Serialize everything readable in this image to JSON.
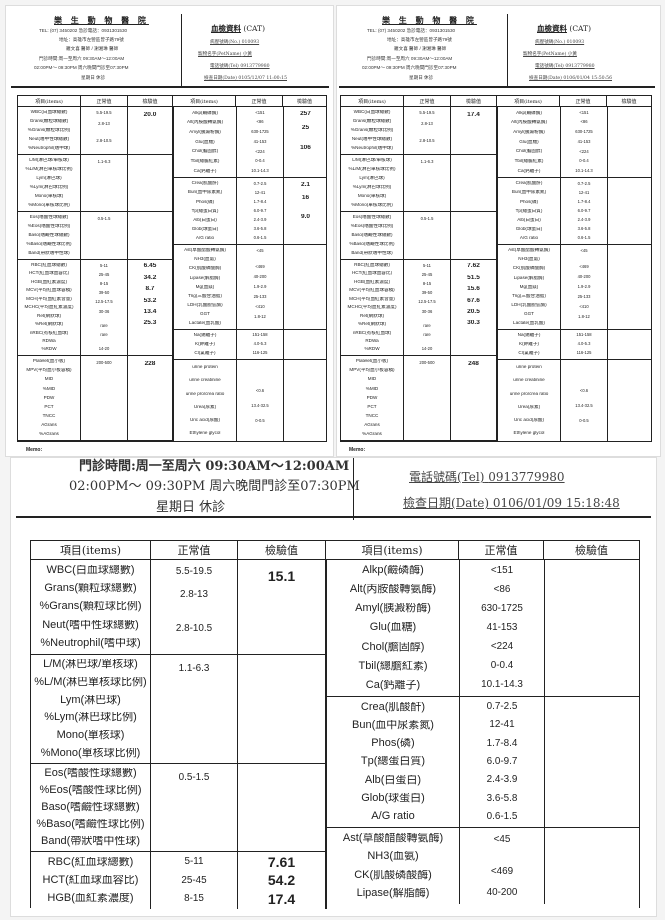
{
  "clinic": {
    "name": "樂 生 動 物 醫 院",
    "tel": "TEL: (07) 3450202  急診電話：0931301530",
    "address": "地址：高雄市左營區曾子路79號",
    "doctors": "羅文喜 醫師 / 謝湘琳 醫師",
    "hours_morning": "門診時間:周一至周六 09:30AM～12:00AM",
    "hours_evening": "02:00PM～ 09:30PM 周六晚間門診至07:30PM",
    "closed": "星期日 休診"
  },
  "form": {
    "title": "血檢資料",
    "species": "(CAT)",
    "no_label": "病歷號碼(No.)",
    "pet_label": "寵物名字(PetName)",
    "tel_label": "電話號碼(Tel)",
    "date_label": "檢查日期(Date)",
    "memo_label": "Memo:",
    "col_items": "項目(items)",
    "col_normal": "正常值",
    "col_result": "檢驗值"
  },
  "left_groups": [
    [
      [
        "WBC(白血球總數)",
        "5.5-19.5"
      ],
      [
        "Grans(顆粒球總數)",
        "2.8-13"
      ],
      [
        "%Grans(顆粒球比例)",
        ""
      ],
      [
        "Neut(嗜中性球總數)",
        "2.8-10.5"
      ],
      [
        "%Neutrophil(嗜中球)",
        ""
      ]
    ],
    [
      [
        "L/M(淋巴球/單核球)",
        "1.1-6.3"
      ],
      [
        "%L/M(淋巴單核球比例)",
        ""
      ],
      [
        "Lym(淋巴球)",
        ""
      ],
      [
        "%Lym(淋巴球比例)",
        ""
      ],
      [
        "Mono(單核球)",
        ""
      ],
      [
        "%Mono(單核球比例)",
        ""
      ]
    ],
    [
      [
        "Eos(嗜酸性球總數)",
        "0.5-1.5"
      ],
      [
        "%Eos(嗜酸性球比例)",
        ""
      ],
      [
        "Baso(嗜鹼性球總數)",
        ""
      ],
      [
        "%Baso(嗜鹼性球比例)",
        ""
      ],
      [
        "Band(帶狀嗜中性球)",
        ""
      ]
    ],
    [
      [
        "RBC(紅血球總數)",
        "5-11"
      ],
      [
        "HCT(紅血球血容比)",
        "25-45"
      ],
      [
        "HGB(血紅素濃度)",
        "8-15"
      ],
      [
        "MCV(平均紅血球容積)",
        "39-50"
      ],
      [
        "MCH(平均血紅素含量)",
        "12.5-17.5"
      ],
      [
        "MCHC(平均血紅素濃度)",
        "30-36"
      ],
      [
        "Ret(網狀球)",
        ""
      ],
      [
        "%Ret(網狀球)",
        "rare"
      ],
      [
        "nRBC(有核紅血球)",
        "rare"
      ],
      [
        "RDWa",
        ""
      ],
      [
        "%RDW",
        "14-20"
      ]
    ],
    [
      [
        "Platelet(血小板)",
        "200-500"
      ],
      [
        "MPV(平均血小板容積)",
        ""
      ],
      [
        "MID",
        ""
      ],
      [
        "%MID",
        ""
      ],
      [
        "PDW",
        ""
      ],
      [
        "PCT",
        ""
      ],
      [
        "TNCC",
        ""
      ],
      [
        "AGrans",
        ""
      ],
      [
        "%AGrans",
        ""
      ]
    ]
  ],
  "right_groups": [
    [
      [
        "Alkp(鹼磷酶)",
        "<151"
      ],
      [
        "Alt(丙胺酸轉氨酶)",
        "<86"
      ],
      [
        "Amyl(胰澱粉酶)",
        "630-1725"
      ],
      [
        "Glu(血糖)",
        "41-153"
      ],
      [
        "Chol(膽固醇)",
        "<224"
      ],
      [
        "Tbil(總膽紅素)",
        "0-0.4"
      ],
      [
        "Ca(鈣離子)",
        "10.1-14.3"
      ]
    ],
    [
      [
        "Crea(肌酸酐)",
        "0.7-2.5"
      ],
      [
        "Bun(血中尿素氮)",
        "12-41"
      ],
      [
        "Phos(磷)",
        "1.7-8.4"
      ],
      [
        "Tp(總蛋白質)",
        "6.0-9.7"
      ],
      [
        "Alb(白蛋白)",
        "2.4-3.9"
      ],
      [
        "Glob(球蛋白)",
        "3.6-5.8"
      ],
      [
        "A/G ratio",
        "0.6-1.5"
      ]
    ],
    [
      [
        "Ast(草酸醋酸轉氨酶)",
        "<45"
      ],
      [
        "NH3(血氨)",
        ""
      ],
      [
        "CK(肌酸磷酸酶)",
        "<469"
      ],
      [
        "Lipase(解脂酶)",
        "40-200"
      ],
      [
        "Mg(血鎂)",
        "1.9-2.9"
      ],
      [
        "Trig(三酸甘油脂)",
        "25-133"
      ],
      [
        "LDH(乳酸脫氫酶)",
        "<410"
      ],
      [
        "GGT",
        "1.8-12"
      ],
      [
        "Lactate(血乳酸)",
        ""
      ]
    ],
    [
      [
        "Na(鈉離子)",
        "151-158"
      ],
      [
        "K(鉀離子)",
        "4.0-5.3"
      ],
      [
        "Cl(氯離子)",
        "116-125"
      ]
    ],
    [
      [
        "urine protein",
        ""
      ],
      [
        "urine creatinine",
        ""
      ],
      [
        "urine pro/crea ratio",
        "<0.6"
      ],
      [
        "Urea(尿素)",
        "13.4-32.5"
      ],
      [
        "Uric acid(尿酸)",
        "0-0.5"
      ],
      [
        "Ethylene glycol",
        ""
      ]
    ]
  ],
  "reports": [
    {
      "no": "010093",
      "pet": "小黃",
      "tel": "0913779980",
      "date": "0105/12/07 11:00:15",
      "left_results": [
        [
          "20.0",
          "",
          "",
          "",
          ""
        ],
        [
          "",
          "",
          "",
          "",
          "",
          ""
        ],
        [
          "",
          "",
          "",
          "",
          ""
        ],
        [
          "6.45",
          "34.2",
          "8.7",
          "53.2",
          "13.4",
          "25.3",
          "",
          "",
          "",
          "",
          ""
        ],
        [
          "228",
          "",
          "",
          "",
          "",
          "",
          "",
          "",
          ""
        ]
      ],
      "right_results": [
        [
          "257",
          "25",
          "",
          "106",
          "",
          "",
          ""
        ],
        [
          "2.1",
          "16",
          "",
          "9.0",
          "",
          "",
          ""
        ],
        [
          "",
          "",
          "",
          "",
          "",
          "",
          "",
          "",
          ""
        ],
        [
          "",
          "",
          ""
        ],
        [
          "",
          "",
          "",
          "",
          "",
          ""
        ]
      ]
    },
    {
      "no": "010093",
      "pet": "小黃",
      "tel": "0913779980",
      "date": "0106/01/04 15:50:56",
      "left_results": [
        [
          "17.4",
          "",
          "",
          "",
          ""
        ],
        [
          "",
          "",
          "",
          "",
          "",
          ""
        ],
        [
          "",
          "",
          "",
          "",
          ""
        ],
        [
          "7.62",
          "51.5",
          "15.6",
          "67.6",
          "20.5",
          "30.3",
          "",
          "",
          "",
          "",
          ""
        ],
        [
          "248",
          "",
          "",
          "",
          "",
          "",
          "",
          "",
          ""
        ]
      ],
      "right_results": [
        [
          "",
          "",
          "",
          "",
          "",
          "",
          ""
        ],
        [
          "",
          "",
          "",
          "",
          "",
          "",
          ""
        ],
        [
          "",
          "",
          "",
          "",
          "",
          "",
          "",
          "",
          ""
        ],
        [
          "",
          "",
          ""
        ],
        [
          "",
          "",
          "",
          "",
          "",
          ""
        ]
      ]
    },
    {
      "tel": "0913779980",
      "date": "0106/01/09 15:18:48",
      "left_results": [
        [
          "15.1",
          "",
          "",
          "",
          ""
        ],
        [
          "",
          "",
          "",
          "",
          "",
          ""
        ],
        [
          "",
          "",
          "",
          "",
          ""
        ],
        [
          "7.61",
          "54.2",
          "17.4",
          "",
          "",
          "",
          "",
          "",
          "",
          "",
          ""
        ],
        [
          "",
          "",
          "",
          "",
          "",
          "",
          "",
          "",
          ""
        ]
      ],
      "right_results": [
        [
          "",
          "",
          "",
          "",
          "",
          "",
          ""
        ],
        [
          "",
          "",
          "",
          "",
          "",
          "",
          ""
        ],
        [
          "",
          "",
          "",
          "",
          "",
          "",
          "",
          "",
          ""
        ],
        [
          "",
          "",
          ""
        ],
        [
          "",
          "",
          "",
          "",
          "",
          ""
        ]
      ]
    }
  ]
}
